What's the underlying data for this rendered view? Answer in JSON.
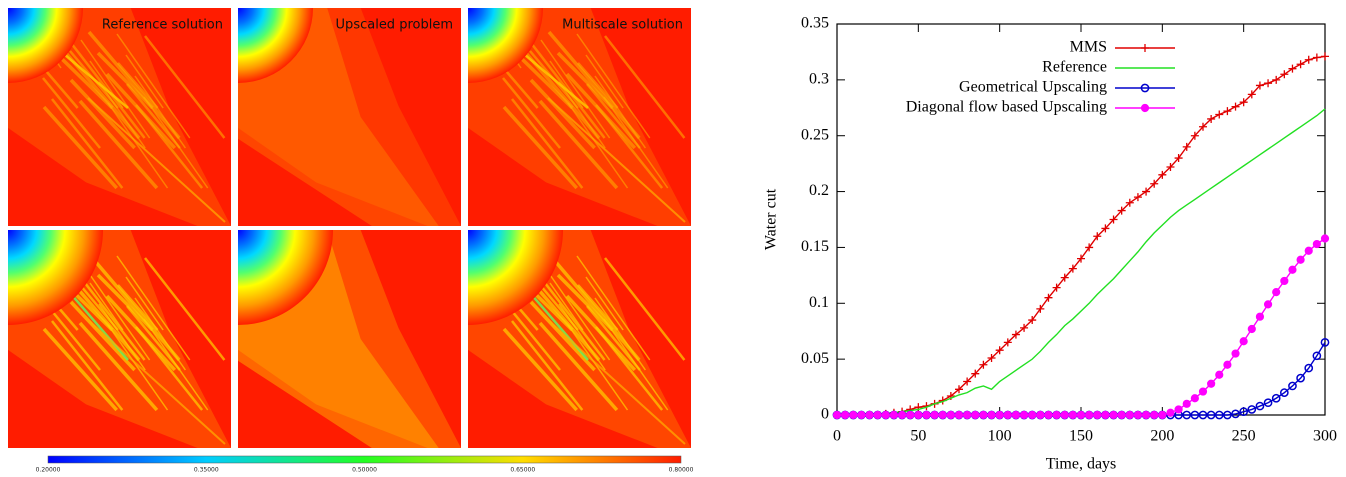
{
  "heatmaps": {
    "titles": [
      "Reference solution",
      "Upscaled problem",
      "Multiscale solution"
    ],
    "colorbar_ticks": [
      "0.20000",
      "0.35000",
      "0.50000",
      "0.65000",
      "0.80000"
    ]
  },
  "chart_data": {
    "type": "line",
    "x_label": "Time, days",
    "y_label": "Water cut",
    "xlim": [
      0,
      300
    ],
    "xticks": [
      0,
      50,
      100,
      150,
      200,
      250,
      300
    ],
    "ylim": [
      0,
      0.35
    ],
    "yticks": [
      0,
      0.05,
      0.1,
      0.15,
      0.2,
      0.25,
      0.3,
      0.35
    ],
    "legend": "top-right",
    "x": [
      0,
      5,
      10,
      15,
      20,
      25,
      30,
      35,
      40,
      45,
      50,
      55,
      60,
      65,
      70,
      75,
      80,
      85,
      90,
      95,
      100,
      105,
      110,
      115,
      120,
      125,
      130,
      135,
      140,
      145,
      150,
      155,
      160,
      165,
      170,
      175,
      180,
      185,
      190,
      195,
      200,
      205,
      210,
      215,
      220,
      225,
      230,
      235,
      240,
      245,
      250,
      255,
      260,
      265,
      270,
      275,
      280,
      285,
      290,
      295,
      300
    ],
    "series": [
      {
        "name": "MMS",
        "color": "#e00000",
        "marker": "plus",
        "values": [
          0,
          0,
          0,
          0,
          0,
          0,
          0.001,
          0.002,
          0.003,
          0.005,
          0.007,
          0.008,
          0.01,
          0.013,
          0.017,
          0.023,
          0.03,
          0.037,
          0.045,
          0.051,
          0.058,
          0.065,
          0.072,
          0.078,
          0.085,
          0.095,
          0.105,
          0.114,
          0.123,
          0.131,
          0.14,
          0.15,
          0.16,
          0.167,
          0.175,
          0.183,
          0.19,
          0.195,
          0.2,
          0.207,
          0.215,
          0.222,
          0.23,
          0.24,
          0.25,
          0.258,
          0.265,
          0.269,
          0.272,
          0.276,
          0.28,
          0.287,
          0.295,
          0.297,
          0.3,
          0.305,
          0.31,
          0.314,
          0.318,
          0.32,
          0.321
        ]
      },
      {
        "name": "Reference",
        "color": "#22e022",
        "marker": "none",
        "values": [
          0,
          0,
          0,
          0,
          0,
          0,
          0.001,
          0.002,
          0.003,
          0.004,
          0.005,
          0.007,
          0.01,
          0.012,
          0.015,
          0.018,
          0.02,
          0.024,
          0.026,
          0.023,
          0.03,
          0.035,
          0.04,
          0.045,
          0.05,
          0.057,
          0.065,
          0.072,
          0.08,
          0.086,
          0.093,
          0.1,
          0.108,
          0.115,
          0.122,
          0.13,
          0.138,
          0.146,
          0.155,
          0.163,
          0.17,
          0.177,
          0.183,
          0.188,
          0.193,
          0.198,
          0.203,
          0.208,
          0.213,
          0.218,
          0.223,
          0.228,
          0.233,
          0.238,
          0.243,
          0.248,
          0.253,
          0.258,
          0.263,
          0.268,
          0.274
        ]
      },
      {
        "name": "Geometrical Upscaling",
        "color": "#0000cc",
        "marker": "open-circle",
        "values": [
          0,
          0,
          0,
          0,
          0,
          0,
          0,
          0,
          0,
          0,
          0,
          0,
          0,
          0,
          0,
          0,
          0,
          0,
          0,
          0,
          0,
          0,
          0,
          0,
          0,
          0,
          0,
          0,
          0,
          0,
          0,
          0,
          0,
          0,
          0,
          0,
          0,
          0,
          0,
          0,
          0,
          0,
          0,
          0,
          0,
          0,
          0,
          0,
          0,
          0.001,
          0.003,
          0.005,
          0.008,
          0.011,
          0.015,
          0.02,
          0.026,
          0.033,
          0.042,
          0.053,
          0.065
        ]
      },
      {
        "name": "Diagonal flow based Upscaling",
        "color": "#ff00ff",
        "marker": "filled-circle",
        "values": [
          0,
          0,
          0,
          0,
          0,
          0,
          0,
          0,
          0,
          0,
          0,
          0,
          0,
          0,
          0,
          0,
          0,
          0,
          0,
          0,
          0,
          0,
          0,
          0,
          0,
          0,
          0,
          0,
          0,
          0,
          0,
          0,
          0,
          0,
          0,
          0,
          0,
          0,
          0,
          0,
          0,
          0.002,
          0.005,
          0.01,
          0.015,
          0.021,
          0.028,
          0.036,
          0.045,
          0.055,
          0.066,
          0.077,
          0.088,
          0.099,
          0.11,
          0.12,
          0.13,
          0.139,
          0.147,
          0.153,
          0.158
        ]
      }
    ]
  }
}
